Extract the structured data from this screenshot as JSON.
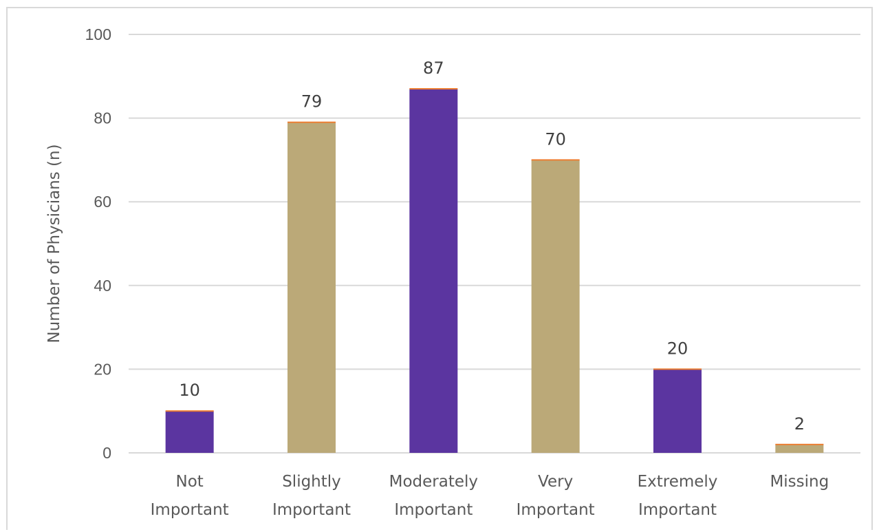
{
  "chart_data": {
    "type": "bar",
    "title": "",
    "xlabel": "",
    "ylabel": "Number of Physicians (n)",
    "categories": [
      [
        "Not",
        "Important"
      ],
      [
        "Slightly",
        "Important"
      ],
      [
        "Moderately",
        "Important"
      ],
      [
        "Very",
        "Important"
      ],
      [
        "Extremely",
        "Important"
      ],
      [
        "Missing"
      ]
    ],
    "values": [
      10,
      79,
      87,
      70,
      20,
      2
    ],
    "data_labels": [
      "10",
      "79",
      "87",
      "70",
      "20",
      "2"
    ],
    "ylim": [
      0,
      100
    ],
    "yticks": [
      0,
      20,
      40,
      60,
      80,
      100
    ],
    "grid": true,
    "legend": "none",
    "colors": {
      "bar_alternating": [
        "#5b35a0",
        "#bba978"
      ],
      "bar_top_line": "#ed7d31",
      "gridline": "#d9d9d9",
      "axis_line": "#d9d9d9"
    }
  }
}
